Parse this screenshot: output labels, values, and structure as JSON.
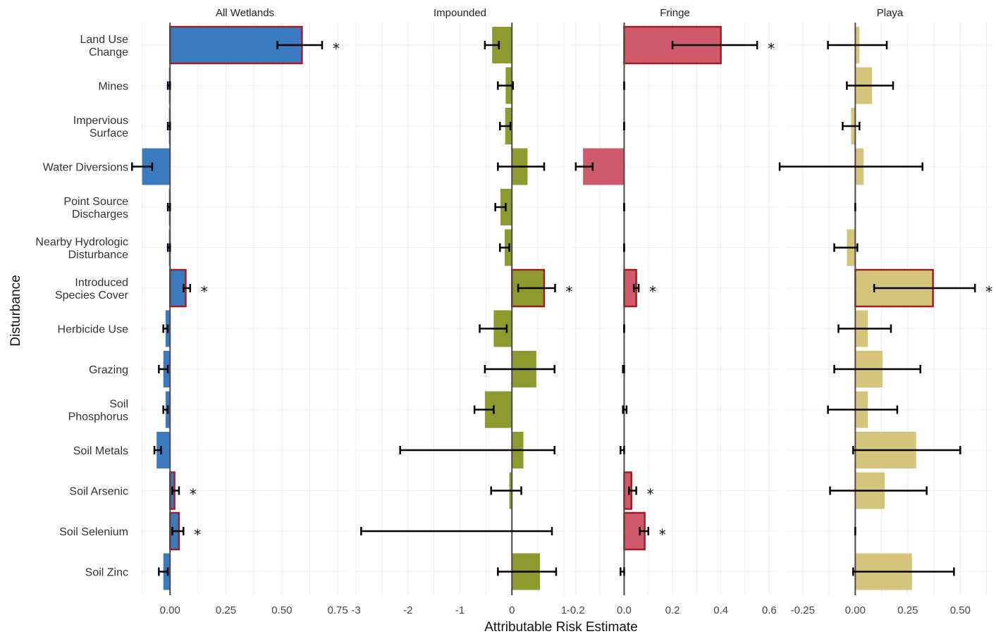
{
  "chart_data": {
    "type": "bar",
    "orientation": "horizontal",
    "xlabel": "Attributable Risk Estimate",
    "ylabel": "Disturbance",
    "categories": [
      [
        "Land Use",
        "Change"
      ],
      [
        "Mines"
      ],
      [
        "Impervious",
        "Surface"
      ],
      [
        "Water Diversions"
      ],
      [
        "Point Source",
        "Discharges"
      ],
      [
        "Nearby Hydrologic",
        "Disturbance"
      ],
      [
        "Introduced",
        "Species Cover"
      ],
      [
        "Herbicide Use"
      ],
      [
        "Grazing"
      ],
      [
        "Soil",
        "Phosphorus"
      ],
      [
        "Soil Metals"
      ],
      [
        "Soil Arsenic"
      ],
      [
        "Soil Selenium"
      ],
      [
        "Soil Zinc"
      ]
    ],
    "significant_marker": "*",
    "significant_outline_color": "#a01f24",
    "grid": true,
    "panels": [
      {
        "title": "All Wetlands",
        "color": "#3a7bbf",
        "xlim": [
          -0.13,
          0.8
        ],
        "ticks": [
          0.0,
          0.25,
          0.5,
          0.75
        ],
        "tick_labels": [
          "0.00",
          "0.25",
          "0.50",
          "0.75"
        ],
        "values": [
          0.59,
          -0.005,
          -0.005,
          -0.125,
          -0.005,
          -0.005,
          0.07,
          -0.02,
          -0.03,
          -0.02,
          -0.06,
          0.02,
          0.04,
          -0.03
        ],
        "ci_low": [
          0.48,
          -0.01,
          -0.01,
          -0.17,
          -0.01,
          -0.01,
          0.06,
          -0.03,
          -0.05,
          -0.03,
          -0.07,
          0.01,
          0.01,
          -0.05
        ],
        "ci_high": [
          0.68,
          0.0,
          0.0,
          -0.08,
          0.0,
          0.0,
          0.09,
          -0.01,
          -0.01,
          -0.01,
          -0.04,
          0.04,
          0.06,
          -0.01
        ],
        "significant": [
          true,
          false,
          false,
          false,
          false,
          false,
          true,
          false,
          false,
          false,
          false,
          true,
          true,
          false
        ]
      },
      {
        "title": "Impounded",
        "color": "#8c9a2e",
        "xlim": [
          -3.0,
          1.0
        ],
        "ticks": [
          -3,
          -2,
          -1,
          0,
          1
        ],
        "tick_labels": [
          "-3",
          "-2",
          "-1",
          "0",
          "1"
        ],
        "values": [
          -0.38,
          -0.12,
          -0.13,
          0.3,
          -0.22,
          -0.14,
          0.62,
          -0.35,
          0.47,
          -0.52,
          0.22,
          -0.05,
          0.0,
          0.54
        ],
        "ci_low": [
          -0.52,
          -0.27,
          -0.23,
          -0.27,
          -0.32,
          -0.23,
          0.12,
          -0.62,
          -0.52,
          -0.72,
          -2.15,
          -0.4,
          -2.9,
          -0.27
        ],
        "ci_high": [
          -0.25,
          0.02,
          -0.03,
          0.62,
          -0.12,
          -0.05,
          0.83,
          -0.1,
          0.82,
          -0.35,
          0.82,
          0.18,
          0.77,
          0.85
        ],
        "significant": [
          false,
          false,
          false,
          false,
          false,
          false,
          true,
          false,
          false,
          false,
          false,
          false,
          false,
          false
        ]
      },
      {
        "title": "Fringe",
        "color": "#cf5a6b",
        "xlim": [
          -0.22,
          0.64
        ],
        "ticks": [
          -0.2,
          0.0,
          0.2,
          0.4,
          0.6
        ],
        "tick_labels": [
          "-0.2",
          "0.0",
          "0.2",
          "0.4",
          "0.6"
        ],
        "values": [
          0.4,
          0,
          0,
          -0.17,
          0,
          0,
          0.05,
          0,
          0,
          0.003,
          0,
          0.03,
          0.085,
          0
        ],
        "ci_low": [
          0.2,
          0,
          0,
          -0.2,
          0,
          0,
          0.04,
          0,
          -0.005,
          -0.005,
          -0.015,
          0.02,
          0.065,
          -0.015
        ],
        "ci_high": [
          0.55,
          0,
          0,
          -0.13,
          0,
          0,
          0.06,
          0,
          0.0,
          0.01,
          0.0,
          0.05,
          0.1,
          0.0
        ],
        "significant": [
          true,
          false,
          false,
          false,
          false,
          false,
          true,
          false,
          false,
          false,
          false,
          true,
          true,
          false
        ]
      },
      {
        "title": "Playa",
        "color": "#d4c57a",
        "xlim": [
          -0.33,
          0.66
        ],
        "ticks": [
          -0.25,
          0.0,
          0.25,
          0.5
        ],
        "tick_labels": [
          "-0.25",
          "0.00",
          "0.25",
          "0.50"
        ],
        "values": [
          0.02,
          0.08,
          -0.02,
          0.04,
          0.0,
          -0.04,
          0.37,
          0.06,
          0.13,
          0.06,
          0.29,
          0.14,
          0.0,
          0.27
        ],
        "ci_low": [
          -0.13,
          -0.04,
          -0.06,
          -0.36,
          0.0,
          -0.1,
          0.09,
          -0.08,
          -0.1,
          -0.13,
          -0.01,
          -0.12,
          0.0,
          -0.01
        ],
        "ci_high": [
          0.15,
          0.18,
          0.02,
          0.32,
          0.0,
          0.01,
          0.57,
          0.17,
          0.31,
          0.2,
          0.5,
          0.34,
          0.0,
          0.47
        ],
        "significant": [
          false,
          false,
          false,
          false,
          false,
          false,
          true,
          false,
          false,
          false,
          false,
          false,
          false,
          false
        ]
      }
    ]
  }
}
